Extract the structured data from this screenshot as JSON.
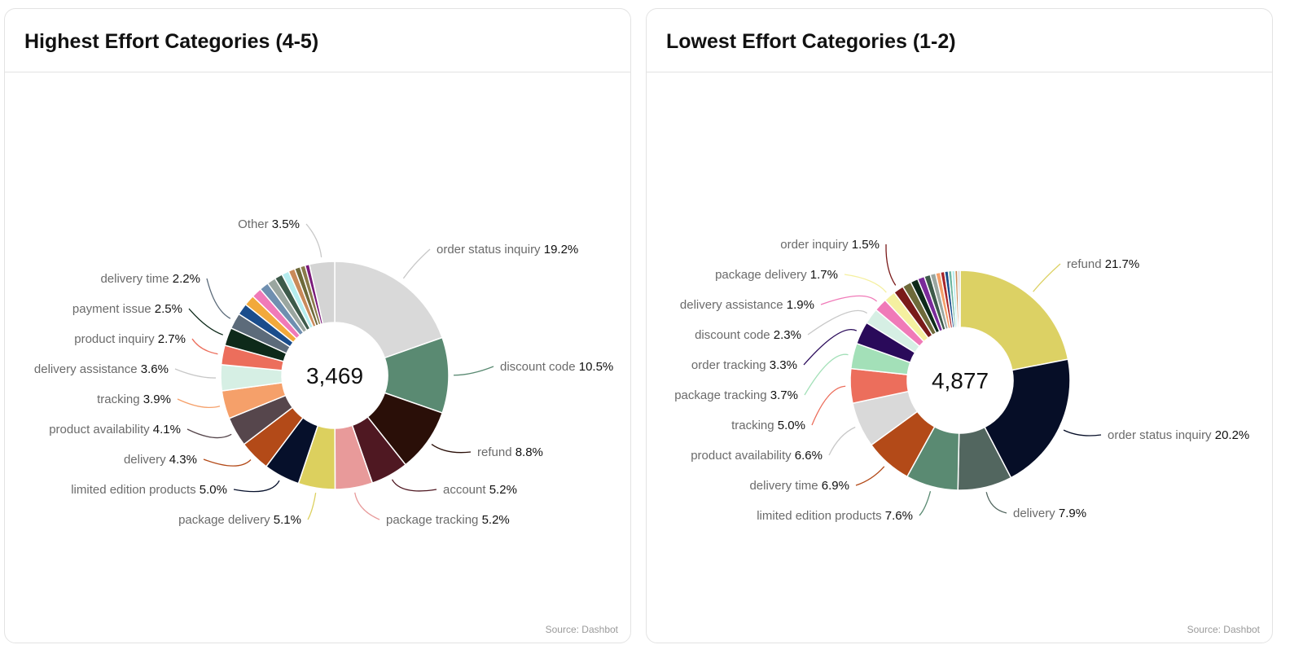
{
  "charts": [
    {
      "title": "Highest Effort Categories (4-5)",
      "total": "3,469",
      "source": "Source: Dashbot",
      "chart_data": {
        "type": "pie",
        "title": "Highest Effort Categories (4-5)",
        "center_label": "3,469",
        "slices": [
          {
            "label": "order status inquiry",
            "value": 19.2,
            "pct": "19.2%",
            "color": "#d9d9d9"
          },
          {
            "label": "discount code",
            "value": 10.5,
            "pct": "10.5%",
            "color": "#5a8a72"
          },
          {
            "label": "refund",
            "value": 8.8,
            "pct": "8.8%",
            "color": "#2a0f08"
          },
          {
            "label": "account",
            "value": 5.2,
            "pct": "5.2%",
            "color": "#4f1822"
          },
          {
            "label": "package tracking",
            "value": 5.2,
            "pct": "5.2%",
            "color": "#e89a9a"
          },
          {
            "label": "package delivery",
            "value": 5.1,
            "pct": "5.1%",
            "color": "#dcd05e"
          },
          {
            "label": "limited edition products",
            "value": 5.0,
            "pct": "5.0%",
            "color": "#06102b"
          },
          {
            "label": "delivery",
            "value": 4.3,
            "pct": "4.3%",
            "color": "#b34a18"
          },
          {
            "label": "product availability",
            "value": 4.1,
            "pct": "4.1%",
            "color": "#56464c"
          },
          {
            "label": "tracking",
            "value": 3.9,
            "pct": "3.9%",
            "color": "#f5a06a"
          },
          {
            "label": "delivery assistance",
            "value": 3.6,
            "pct": "3.6%",
            "color": "#d6efe4"
          },
          {
            "label": "product inquiry",
            "value": 2.7,
            "pct": "2.7%",
            "color": "#ec6e5c"
          },
          {
            "label": "payment issue",
            "value": 2.5,
            "pct": "2.5%",
            "color": "#0e2a1a"
          },
          {
            "label": "delivery time",
            "value": 2.2,
            "pct": "2.2%",
            "color": "#5c6b7a"
          },
          {
            "label": "",
            "value": 1.6,
            "pct": "",
            "color": "#1a4d8c"
          },
          {
            "label": "",
            "value": 1.5,
            "pct": "",
            "color": "#f2a93b"
          },
          {
            "label": "",
            "value": 1.4,
            "pct": "",
            "color": "#f07ab8"
          },
          {
            "label": "",
            "value": 1.3,
            "pct": "",
            "color": "#6f8fb0"
          },
          {
            "label": "",
            "value": 1.2,
            "pct": "",
            "color": "#9aa6a0"
          },
          {
            "label": "",
            "value": 1.1,
            "pct": "",
            "color": "#3d5a4a"
          },
          {
            "label": "",
            "value": 1.0,
            "pct": "",
            "color": "#b5ecee"
          },
          {
            "label": "",
            "value": 0.9,
            "pct": "",
            "color": "#c98a5a"
          },
          {
            "label": "",
            "value": 0.8,
            "pct": "",
            "color": "#6e6a3a"
          },
          {
            "label": "",
            "value": 0.7,
            "pct": "",
            "color": "#8a7a4a"
          },
          {
            "label": "",
            "value": 0.6,
            "pct": "",
            "color": "#7a1a7a"
          },
          {
            "label": "Other",
            "value": 3.5,
            "pct": "3.5%",
            "color": "#d4d4d4"
          }
        ]
      }
    },
    {
      "title": "Lowest Effort Categories (1-2)",
      "total": "4,877",
      "source": "Source: Dashbot",
      "chart_data": {
        "type": "pie",
        "title": "Lowest Effort Categories (1-2)",
        "center_label": "4,877",
        "slices": [
          {
            "label": "refund",
            "value": 21.7,
            "pct": "21.7%",
            "color": "#dcd164"
          },
          {
            "label": "order status inquiry",
            "value": 20.2,
            "pct": "20.2%",
            "color": "#060e27"
          },
          {
            "label": "delivery",
            "value": 7.9,
            "pct": "7.9%",
            "color": "#52665f"
          },
          {
            "label": "limited edition products",
            "value": 7.6,
            "pct": "7.6%",
            "color": "#5a8a72"
          },
          {
            "label": "delivery time",
            "value": 6.9,
            "pct": "6.9%",
            "color": "#b34a18"
          },
          {
            "label": "product availability",
            "value": 6.6,
            "pct": "6.6%",
            "color": "#d9d9d9"
          },
          {
            "label": "tracking",
            "value": 5.0,
            "pct": "5.0%",
            "color": "#ec6e5c"
          },
          {
            "label": "package tracking",
            "value": 3.7,
            "pct": "3.7%",
            "color": "#a3e0b8"
          },
          {
            "label": "order tracking",
            "value": 3.3,
            "pct": "3.3%",
            "color": "#2a0a5a"
          },
          {
            "label": "discount code",
            "value": 2.3,
            "pct": "2.3%",
            "color": "#d6efe4"
          },
          {
            "label": "delivery assistance",
            "value": 1.9,
            "pct": "1.9%",
            "color": "#f07ab8"
          },
          {
            "label": "package delivery",
            "value": 1.7,
            "pct": "1.7%",
            "color": "#f5f0a0"
          },
          {
            "label": "order inquiry",
            "value": 1.5,
            "pct": "1.5%",
            "color": "#7a1a1a"
          },
          {
            "label": "",
            "value": 1.3,
            "pct": "",
            "color": "#6e6a3a"
          },
          {
            "label": "",
            "value": 1.1,
            "pct": "",
            "color": "#0e2a1a"
          },
          {
            "label": "",
            "value": 1.0,
            "pct": "",
            "color": "#7a2a9a"
          },
          {
            "label": "",
            "value": 0.9,
            "pct": "",
            "color": "#3d5a4a"
          },
          {
            "label": "",
            "value": 0.8,
            "pct": "",
            "color": "#9aa6a0"
          },
          {
            "label": "",
            "value": 0.7,
            "pct": "",
            "color": "#f5a06a"
          },
          {
            "label": "",
            "value": 0.6,
            "pct": "",
            "color": "#a8252a"
          },
          {
            "label": "",
            "value": 0.55,
            "pct": "",
            "color": "#1a4d8c"
          },
          {
            "label": "",
            "value": 0.5,
            "pct": "",
            "color": "#6fb6a0"
          },
          {
            "label": "",
            "value": 0.45,
            "pct": "",
            "color": "#b5ecee"
          },
          {
            "label": "",
            "value": 0.4,
            "pct": "",
            "color": "#c98a5a"
          },
          {
            "label": "",
            "value": 0.35,
            "pct": "",
            "color": "#d4d4d4"
          }
        ]
      }
    }
  ]
}
